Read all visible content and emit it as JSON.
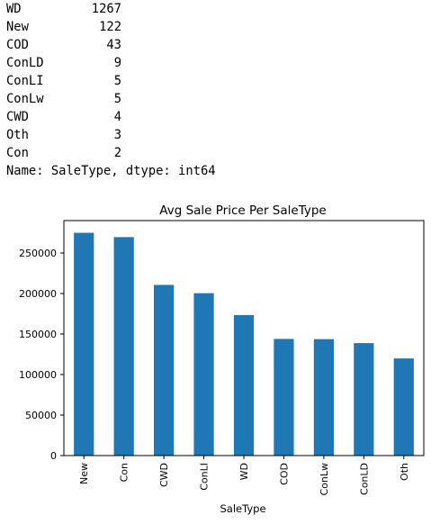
{
  "output": {
    "rows": [
      {
        "key": "WD",
        "value": "1267"
      },
      {
        "key": "New",
        "value": "122"
      },
      {
        "key": "COD",
        "value": "43"
      },
      {
        "key": "ConLD",
        "value": "9"
      },
      {
        "key": "ConLI",
        "value": "5"
      },
      {
        "key": "ConLw",
        "value": "5"
      },
      {
        "key": "CWD",
        "value": "4"
      },
      {
        "key": "Oth",
        "value": "3"
      },
      {
        "key": "Con",
        "value": "2"
      }
    ],
    "summary": "Name: SaleType, dtype: int64"
  },
  "colors": {
    "bar": "#1f77b4",
    "axis": "#000000",
    "text": "#000000"
  },
  "chart_data": {
    "type": "bar",
    "title": "Avg Sale Price Per SaleType",
    "xlabel": "SaleType",
    "ylabel": "",
    "categories": [
      "New",
      "Con",
      "CWD",
      "ConLI",
      "WD",
      "COD",
      "ConLw",
      "ConLD",
      "Oth"
    ],
    "values": [
      274945,
      269600,
      210600,
      200390,
      173402,
      143973,
      143700,
      138781,
      119850
    ],
    "ylim": [
      0,
      290000
    ],
    "yticks": [
      0,
      50000,
      100000,
      150000,
      200000,
      250000
    ],
    "ytick_labels": [
      "0",
      "50000",
      "100000",
      "150000",
      "200000",
      "250000"
    ],
    "grid": false,
    "legend": "none"
  }
}
